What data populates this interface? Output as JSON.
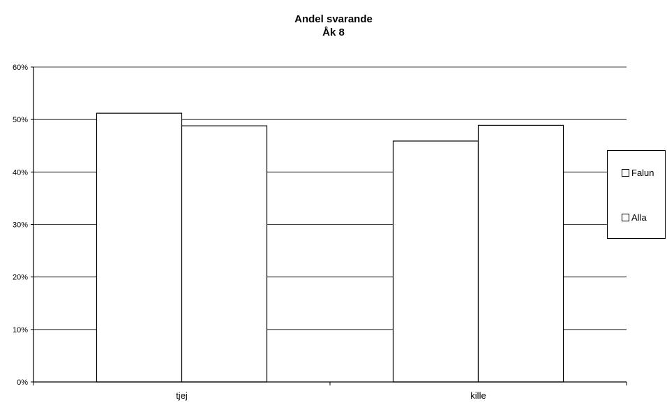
{
  "chart_data": {
    "type": "bar",
    "title": "Andel svarande",
    "subtitle": "Åk 8",
    "categories": [
      "tjej",
      "kille"
    ],
    "series": [
      {
        "name": "Falun",
        "values": [
          51.2,
          45.9
        ]
      },
      {
        "name": "Alla",
        "values": [
          48.8,
          48.9
        ]
      }
    ],
    "ylim": [
      0,
      60
    ],
    "yticks": [
      "0%",
      "10%",
      "20%",
      "30%",
      "40%",
      "50%",
      "60%"
    ],
    "ytick_values": [
      0,
      10,
      20,
      30,
      40,
      50,
      60
    ],
    "grid": true,
    "legend_position": "right",
    "bar_fill": "#ffffff",
    "bar_stroke": "#000000"
  }
}
